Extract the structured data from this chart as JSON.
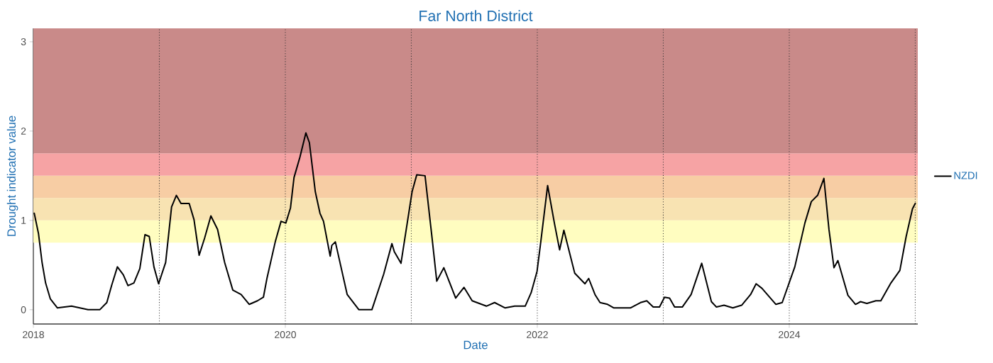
{
  "chart_data": {
    "type": "line",
    "title": "Far North District",
    "xlabel": "Date",
    "ylabel": "Drought indicator value",
    "x": [
      2018.007,
      2018.041,
      2018.069,
      2018.097,
      2018.135,
      2018.191,
      2018.303,
      2018.434,
      2018.527,
      2018.583,
      2018.621,
      2018.667,
      2018.714,
      2018.751,
      2018.798,
      2018.845,
      2018.886,
      2018.92,
      2018.957,
      2018.994,
      2019.05,
      2019.097,
      2019.135,
      2019.172,
      2019.237,
      2019.275,
      2019.316,
      2019.359,
      2019.409,
      2019.462,
      2019.518,
      2019.583,
      2019.649,
      2019.714,
      2019.779,
      2019.826,
      2019.854,
      2019.92,
      2019.966,
      2020.004,
      2020.041,
      2020.069,
      2020.116,
      2020.163,
      2020.191,
      2020.238,
      2020.275,
      2020.303,
      2020.356,
      2020.369,
      2020.397,
      2020.491,
      2020.584,
      2020.687,
      2020.781,
      2020.846,
      2020.865,
      2020.918,
      2021.006,
      2021.043,
      2021.109,
      2021.165,
      2021.202,
      2021.258,
      2021.352,
      2021.418,
      2021.483,
      2021.596,
      2021.661,
      2021.745,
      2021.82,
      2021.904,
      2021.951,
      2021.998,
      2022.026,
      2022.082,
      2022.137,
      2022.177,
      2022.211,
      2022.297,
      2022.378,
      2022.408,
      2022.458,
      2022.498,
      2022.558,
      2022.608,
      2022.739,
      2022.819,
      2022.869,
      2022.92,
      2022.97,
      2023.01,
      2023.05,
      2023.09,
      2023.151,
      2023.221,
      2023.305,
      2023.382,
      2023.422,
      2023.482,
      2023.552,
      2023.622,
      2023.693,
      2023.737,
      2023.783,
      2023.894,
      2023.944,
      2024.044,
      2024.124,
      2024.175,
      2024.225,
      2024.275,
      2024.315,
      2024.355,
      2024.386,
      2024.466,
      2024.526,
      2024.566,
      2024.616,
      2024.687,
      2024.727,
      2024.807,
      2024.878,
      2024.928,
      2024.978,
      2025.0
    ],
    "series": [
      {
        "name": "NZDI",
        "color": "#000000",
        "values": [
          1.08,
          0.85,
          0.53,
          0.3,
          0.12,
          0.02,
          0.04,
          0,
          0,
          0.08,
          0.27,
          0.48,
          0.39,
          0.27,
          0.3,
          0.46,
          0.84,
          0.82,
          0.48,
          0.29,
          0.53,
          1.15,
          1.28,
          1.19,
          1.19,
          1.01,
          0.61,
          0.8,
          1.05,
          0.9,
          0.53,
          0.22,
          0.17,
          0.06,
          0.1,
          0.14,
          0.35,
          0.76,
          0.99,
          0.97,
          1.14,
          1.48,
          1.71,
          1.98,
          1.87,
          1.32,
          1.08,
          0.99,
          0.6,
          0.72,
          0.76,
          0.17,
          0,
          0,
          0.4,
          0.74,
          0.65,
          0.52,
          1.32,
          1.51,
          1.5,
          0.8,
          0.32,
          0.47,
          0.13,
          0.25,
          0.1,
          0.04,
          0.08,
          0.02,
          0.04,
          0.04,
          0.19,
          0.43,
          0.74,
          1.39,
          0.96,
          0.67,
          0.89,
          0.41,
          0.29,
          0.35,
          0.17,
          0.08,
          0.06,
          0.02,
          0.02,
          0.08,
          0.1,
          0.03,
          0.03,
          0.14,
          0.13,
          0.03,
          0.03,
          0.17,
          0.52,
          0.09,
          0.03,
          0.05,
          0.02,
          0.05,
          0.17,
          0.29,
          0.24,
          0.06,
          0.08,
          0.48,
          0.97,
          1.21,
          1.28,
          1.47,
          0.9,
          0.47,
          0.55,
          0.16,
          0.06,
          0.09,
          0.07,
          0.1,
          0.1,
          0.3,
          0.44,
          0.82,
          1.13,
          1.19
        ]
      }
    ],
    "xlim": [
      2018,
      2025.02
    ],
    "xticks": [
      2018,
      2020,
      2022,
      2024
    ],
    "ylim": [
      -0.16,
      3.15
    ],
    "yticks": [
      0,
      1,
      2,
      3
    ],
    "bands": [
      {
        "axis": "y",
        "from": 0.75,
        "to": 1.0,
        "color": "#fffdc0"
      },
      {
        "axis": "y",
        "from": 1.0,
        "to": 1.25,
        "color": "#f8e3b2"
      },
      {
        "axis": "y",
        "from": 1.25,
        "to": 1.5,
        "color": "#f7cda4"
      },
      {
        "axis": "y",
        "from": 1.5,
        "to": 1.75,
        "color": "#f6a3a4"
      },
      {
        "axis": "y",
        "from": 1.75,
        "to": 3.15,
        "color": "#c98a89"
      }
    ],
    "ref_lines": [
      {
        "axis": "x",
        "value": 2019,
        "line_style": "dotted"
      },
      {
        "axis": "x",
        "value": 2020,
        "line_style": "dotted"
      },
      {
        "axis": "x",
        "value": 2021,
        "line_style": "dotted"
      },
      {
        "axis": "x",
        "value": 2022,
        "line_style": "dotted"
      },
      {
        "axis": "x",
        "value": 2023,
        "line_style": "dotted"
      },
      {
        "axis": "x",
        "value": 2024,
        "line_style": "dotted"
      },
      {
        "axis": "x",
        "value": 2025,
        "line_style": "dotted"
      }
    ],
    "legend": "right",
    "grid": false,
    "marker": "none",
    "line_style": "solid"
  }
}
